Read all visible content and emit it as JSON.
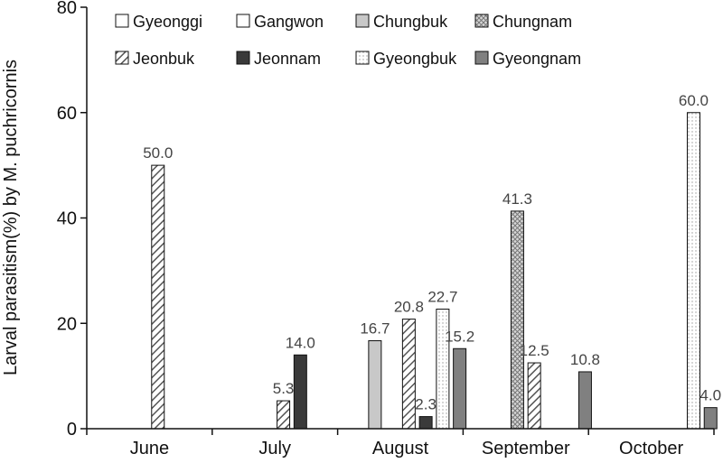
{
  "chart_data": {
    "type": "bar",
    "title": "",
    "xlabel": "",
    "ylabel": "Larval parasitism(%) by M. puchricornis",
    "ylim": [
      0,
      80
    ],
    "yticks": [
      0,
      20,
      40,
      60,
      80
    ],
    "grid": false,
    "legend_position": "top",
    "categories": [
      "June",
      "July",
      "August",
      "September",
      "October"
    ],
    "series": [
      {
        "name": "Gyeonggi",
        "pattern": "white",
        "values": [
          null,
          null,
          null,
          null,
          null
        ]
      },
      {
        "name": "Gangwon",
        "pattern": "white",
        "values": [
          null,
          null,
          null,
          null,
          null
        ]
      },
      {
        "name": "Chungbuk",
        "pattern": "light-gray",
        "values": [
          null,
          null,
          16.7,
          null,
          null
        ]
      },
      {
        "name": "Chungnam",
        "pattern": "crosshatch",
        "values": [
          null,
          null,
          null,
          41.3,
          null
        ]
      },
      {
        "name": "Jeonbuk",
        "pattern": "diagonal",
        "values": [
          50.0,
          5.3,
          20.8,
          12.5,
          null
        ]
      },
      {
        "name": "Jeonnam",
        "pattern": "dark",
        "values": [
          null,
          14.0,
          2.3,
          null,
          null
        ]
      },
      {
        "name": "Gyeongbuk",
        "pattern": "dotted",
        "values": [
          null,
          null,
          22.7,
          null,
          60.0
        ]
      },
      {
        "name": "Gyeongnam",
        "pattern": "medium-gray",
        "values": [
          null,
          null,
          15.2,
          10.8,
          4.0
        ]
      }
    ],
    "data_labels": [
      "50.0",
      "5.3",
      "14.0",
      "16.7",
      "20.8",
      "2.3",
      "22.7",
      "15.2",
      "41.3",
      "12.5",
      "10.8",
      "60.0",
      "4.0"
    ]
  }
}
